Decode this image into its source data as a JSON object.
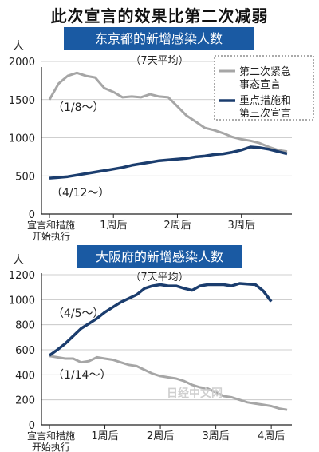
{
  "title": "此次宣言的效果比第二次减弱",
  "watermark": "日经中文网",
  "colors": {
    "banner": "#1a5aa3",
    "grey": "#a6a6a6",
    "navy": "#1b3d6e"
  },
  "chart_data": [
    {
      "type": "line",
      "title": "东京都的新增感染人数",
      "subtitle": "（7天平均）",
      "y_unit": "人",
      "ylim": [
        0,
        2000
      ],
      "yticks": [
        0,
        500,
        1000,
        1500,
        2000
      ],
      "xlim": [
        0,
        26
      ],
      "xticks": [
        {
          "x": 0,
          "label": "宣言和措施\n开始执行"
        },
        {
          "x": 7,
          "label": "1周后"
        },
        {
          "x": 14,
          "label": "2周后"
        },
        {
          "x": 21,
          "label": "3周后"
        }
      ],
      "legend": [
        "第二次紧急\n事态宣言",
        "重点措施和\n第三次宣言"
      ],
      "annotations": [
        "（1/8～）",
        "（4/12～）"
      ],
      "series": [
        {
          "name": "第二次紧急事态宣言",
          "color": "grey",
          "x": [
            0,
            1,
            2,
            3,
            4,
            5,
            6,
            7,
            8,
            9,
            10,
            11,
            12,
            13,
            14,
            15,
            16,
            17,
            18,
            19,
            20,
            21,
            22,
            23,
            24,
            25,
            26
          ],
          "values": [
            1500,
            1710,
            1810,
            1850,
            1810,
            1790,
            1650,
            1600,
            1530,
            1540,
            1530,
            1570,
            1540,
            1530,
            1410,
            1290,
            1210,
            1130,
            1100,
            1060,
            1010,
            980,
            960,
            930,
            880,
            840,
            820
          ]
        },
        {
          "name": "重点措施和第三次宣言",
          "color": "navy",
          "x": [
            0,
            1,
            2,
            3,
            4,
            5,
            6,
            7,
            8,
            9,
            10,
            11,
            12,
            13,
            14,
            15,
            16,
            17,
            18,
            19,
            20,
            21,
            22,
            23,
            24,
            25,
            26
          ],
          "values": [
            470,
            480,
            490,
            510,
            530,
            550,
            570,
            590,
            610,
            640,
            660,
            680,
            700,
            710,
            720,
            730,
            750,
            760,
            780,
            790,
            810,
            840,
            880,
            870,
            850,
            820,
            790
          ]
        }
      ]
    },
    {
      "type": "line",
      "title": "大阪府的新增感染人数",
      "subtitle": "（7天平均）",
      "y_unit": "人",
      "ylim": [
        0,
        1200
      ],
      "yticks": [
        0,
        200,
        400,
        600,
        800,
        1000,
        1200
      ],
      "xlim": [
        0,
        30
      ],
      "xticks": [
        {
          "x": 0,
          "label": "宣言和措施\n开始执行"
        },
        {
          "x": 7,
          "label": "1周后"
        },
        {
          "x": 14,
          "label": "2周后"
        },
        {
          "x": 21,
          "label": "3周后"
        },
        {
          "x": 28,
          "label": "4周后"
        }
      ],
      "annotations": [
        "（4/5～）",
        "（1/14～）"
      ],
      "series": [
        {
          "name": "重点措施和第三次宣言",
          "color": "navy",
          "x": [
            0,
            1,
            2,
            3,
            4,
            5,
            6,
            7,
            8,
            9,
            10,
            11,
            12,
            13,
            14,
            15,
            16,
            17,
            18,
            19,
            20,
            21,
            22,
            23,
            24,
            25,
            26,
            27,
            28
          ],
          "values": [
            555,
            600,
            650,
            710,
            770,
            810,
            850,
            900,
            940,
            980,
            1010,
            1040,
            1090,
            1110,
            1120,
            1110,
            1110,
            1090,
            1075,
            1110,
            1120,
            1120,
            1120,
            1110,
            1130,
            1125,
            1120,
            1070,
            985
          ]
        },
        {
          "name": "第二次紧急事态宣言",
          "color": "grey",
          "x": [
            0,
            1,
            2,
            3,
            4,
            5,
            6,
            7,
            8,
            9,
            10,
            11,
            12,
            13,
            14,
            15,
            16,
            17,
            18,
            19,
            20,
            21,
            22,
            23,
            24,
            25,
            26,
            27,
            28,
            29,
            30
          ],
          "values": [
            550,
            540,
            530,
            530,
            500,
            510,
            540,
            530,
            520,
            500,
            480,
            470,
            440,
            410,
            390,
            380,
            370,
            350,
            320,
            300,
            290,
            260,
            230,
            220,
            200,
            180,
            170,
            160,
            150,
            130,
            120
          ]
        }
      ]
    }
  ]
}
